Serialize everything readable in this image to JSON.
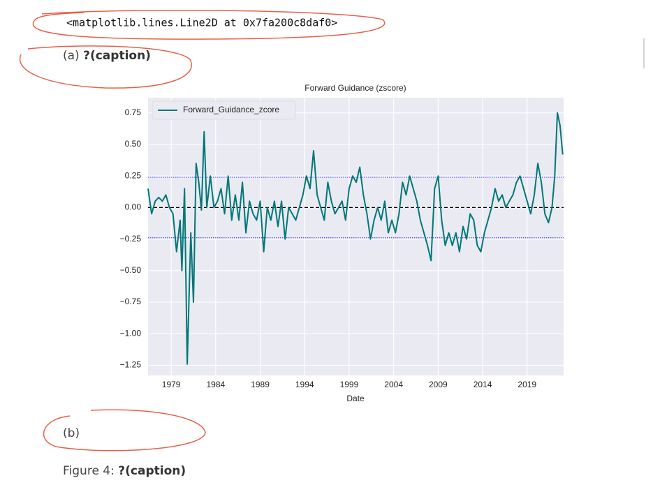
{
  "output_text": "<matplotlib.lines.Line2D at 0x7fa200c8daf0>",
  "subcaption_a": {
    "label": "(a)",
    "text": "?(caption)"
  },
  "subcaption_b": {
    "label": "(b)"
  },
  "figure_caption": {
    "label": "Figure 4:",
    "text": "?(caption)"
  },
  "chart_data": {
    "type": "line",
    "title": "Forward Guidance (zscore)",
    "xlabel": "Date",
    "x": [
      1976.4,
      1976.8,
      1977.2,
      1977.6,
      1978.0,
      1978.4,
      1978.8,
      1979.2,
      1979.6,
      1980.0,
      1980.2,
      1980.5,
      1980.8,
      1981.2,
      1981.5,
      1981.8,
      1982.1,
      1982.4,
      1982.7,
      1983.0,
      1983.4,
      1983.8,
      1984.2,
      1984.6,
      1985.0,
      1985.4,
      1985.8,
      1986.2,
      1986.6,
      1987.0,
      1987.4,
      1987.8,
      1988.2,
      1988.6,
      1989.0,
      1989.4,
      1989.8,
      1990.2,
      1990.6,
      1991.0,
      1991.4,
      1991.8,
      1992.2,
      1992.6,
      1993.0,
      1993.4,
      1993.8,
      1994.2,
      1994.6,
      1995.0,
      1995.4,
      1995.8,
      1996.2,
      1996.6,
      1997.0,
      1997.4,
      1997.8,
      1998.2,
      1998.6,
      1999.0,
      1999.4,
      1999.8,
      2000.2,
      2000.6,
      2001.0,
      2001.4,
      2001.8,
      2002.2,
      2002.6,
      2003.0,
      2003.4,
      2003.8,
      2004.2,
      2004.6,
      2005.0,
      2005.4,
      2005.8,
      2006.2,
      2006.6,
      2007.0,
      2007.4,
      2007.8,
      2008.2,
      2008.6,
      2009.0,
      2009.4,
      2009.8,
      2010.2,
      2010.6,
      2011.0,
      2011.4,
      2011.8,
      2012.2,
      2012.6,
      2013.0,
      2013.4,
      2013.8,
      2014.2,
      2014.6,
      2015.0,
      2015.4,
      2015.8,
      2016.2,
      2016.6,
      2017.0,
      2017.4,
      2017.8,
      2018.2,
      2018.6,
      2019.0,
      2019.4,
      2019.8,
      2020.2,
      2020.6,
      2021.0,
      2021.4,
      2021.8,
      2022.1,
      2022.4,
      2022.7,
      2023.0
    ],
    "series": [
      {
        "name": "Forward_Guidance_zcore",
        "color": "#007777",
        "values": [
          0.15,
          -0.05,
          0.05,
          0.08,
          0.05,
          0.1,
          0.0,
          -0.05,
          -0.35,
          -0.1,
          -0.5,
          0.15,
          -1.24,
          -0.2,
          -0.75,
          0.35,
          0.2,
          -0.02,
          0.6,
          0.0,
          0.25,
          0.0,
          0.05,
          0.15,
          -0.05,
          0.25,
          -0.1,
          0.1,
          -0.1,
          0.2,
          -0.2,
          0.05,
          -0.05,
          -0.1,
          0.05,
          -0.35,
          0.0,
          -0.1,
          0.05,
          -0.15,
          0.05,
          -0.25,
          0.0,
          -0.05,
          -0.1,
          0.0,
          0.1,
          0.25,
          0.15,
          0.45,
          0.1,
          0.0,
          -0.1,
          0.2,
          0.05,
          -0.05,
          0.0,
          0.05,
          -0.1,
          0.15,
          0.25,
          0.2,
          0.32,
          0.1,
          -0.05,
          -0.25,
          -0.1,
          0.0,
          -0.1,
          0.05,
          -0.2,
          -0.1,
          -0.2,
          -0.05,
          0.2,
          0.1,
          0.25,
          0.15,
          0.05,
          -0.1,
          -0.2,
          -0.3,
          -0.42,
          0.15,
          0.25,
          -0.1,
          -0.3,
          -0.2,
          -0.3,
          -0.2,
          -0.35,
          -0.15,
          -0.25,
          -0.05,
          -0.1,
          -0.3,
          -0.35,
          -0.2,
          -0.1,
          0.0,
          0.15,
          0.05,
          0.1,
          0.0,
          0.05,
          0.1,
          0.2,
          0.25,
          0.15,
          0.05,
          -0.05,
          0.1,
          0.35,
          0.2,
          -0.05,
          -0.12,
          0.0,
          0.25,
          0.75,
          0.65,
          0.42
        ]
      }
    ],
    "xlim": [
      1976.4,
      2023.1
    ],
    "xticks": [
      1979,
      1984,
      1989,
      1994,
      1999,
      2004,
      2009,
      2014,
      2019
    ],
    "ylim": [
      -1.33,
      0.87
    ],
    "yticks": [
      {
        "value": -1.25,
        "label": "−1.25"
      },
      {
        "value": -1.0,
        "label": "−1.00"
      },
      {
        "value": -0.75,
        "label": "−0.75"
      },
      {
        "value": -0.5,
        "label": "−0.50"
      },
      {
        "value": -0.25,
        "label": "−0.25"
      },
      {
        "value": 0,
        "label": "0.00"
      },
      0.25,
      {
        "value": 0.5,
        "label": "0.50"
      },
      0.75
    ],
    "reference_lines": [
      {
        "value": 0,
        "color": "#000000"
      },
      {
        "value": 0.24,
        "color": "#0000ff"
      },
      {
        "value": -0.24,
        "color": "#0000ff"
      }
    ],
    "grid": true,
    "legend": "upper left"
  }
}
